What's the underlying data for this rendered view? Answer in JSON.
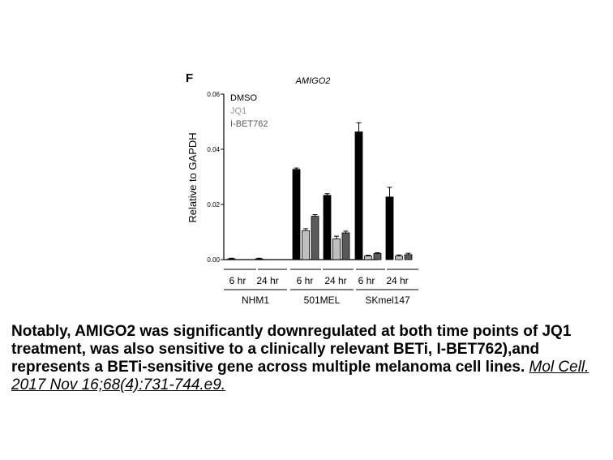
{
  "chart_data": {
    "type": "bar",
    "panel_label": "F",
    "title": "AMIGO2",
    "ylabel": "Relative to GAPDH",
    "ylim": [
      0,
      0.06
    ],
    "yticks": [
      "0.00",
      "0.02",
      "0.04",
      "0.06"
    ],
    "ytick_values": [
      0,
      0.02,
      0.04,
      0.06
    ],
    "timepoints": [
      "6 hr",
      "24 hr",
      "6 hr",
      "24 hr",
      "6 hr",
      "24 hr"
    ],
    "cell_lines": [
      "NHM1",
      "501MEL",
      "SKmel147"
    ],
    "series": [
      {
        "name": "DMSO",
        "color": "#000000",
        "values": [
          0.0003,
          0.0003,
          0.0327,
          0.0233,
          0.0463,
          0.0227
        ],
        "errors": [
          0.0002,
          0.0002,
          0.0005,
          0.0006,
          0.0033,
          0.0035
        ]
      },
      {
        "name": "JQ1",
        "color": "#c0c0c0",
        "values": [
          0,
          0,
          0.0105,
          0.0075,
          0.0013,
          0.0013
        ],
        "errors": [
          0,
          0,
          0.0007,
          0.001,
          0.0003,
          0.0004
        ]
      },
      {
        "name": "I-BET762",
        "color": "#5a5a5a",
        "values": [
          0,
          0,
          0.0157,
          0.0097,
          0.0022,
          0.0018
        ],
        "errors": [
          0,
          0,
          0.0006,
          0.0006,
          0.0003,
          0.0005
        ]
      }
    ],
    "legend_position": "top-left",
    "grid": false
  },
  "caption": {
    "text": "Notably, AMIGO2 was significantly downregulated at both time points of JQ1 treatment, was also sensitive to a clinically relevant BETi, I-BET762),and represents a BETi-sensitive gene across multiple melanoma cell lines. ",
    "citation": "Mol Cell. 2017 Nov 16;68(4):731-744.e9."
  }
}
